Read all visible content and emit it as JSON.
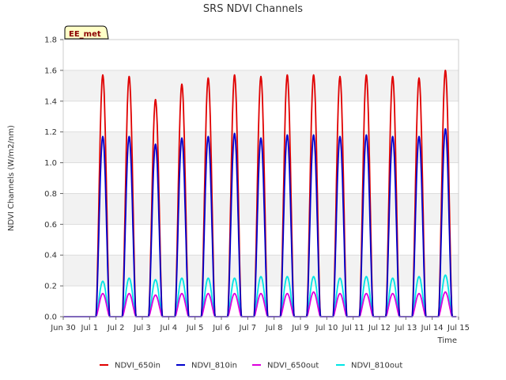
{
  "chart_data": {
    "type": "line",
    "title": "SRS NDVI Channels",
    "xlabel": "Time",
    "ylabel": "NDVI Channels (W/m2/nm)",
    "ylim": [
      0,
      1.8
    ],
    "xlim": [
      "2023-06-30",
      "2023-07-15"
    ],
    "x_tick_labels": [
      "Jun 30",
      "Jul 1",
      "Jul 2",
      "Jul 3",
      "Jul 4",
      "Jul 5",
      "Jul 6",
      "Jul 7",
      "Jul 8",
      "Jul 9",
      "Jul 10",
      "Jul 11",
      "Jul 12",
      "Jul 13",
      "Jul 14",
      "Jul 15"
    ],
    "y_tick_labels": [
      "0.0",
      "0.2",
      "0.4",
      "0.6",
      "0.8",
      "1.0",
      "1.2",
      "1.4",
      "1.6",
      "1.8"
    ],
    "y_ticks": [
      0,
      0.2,
      0.4,
      0.6,
      0.8,
      1.0,
      1.2,
      1.4,
      1.6,
      1.8
    ],
    "grid": "horizontal bands",
    "legend_position": "bottom",
    "annotation": "EE_met",
    "series": [
      {
        "name": "NDVI_650in",
        "color": "#e00000",
        "daily_peak": [
          "2023-07-01T12:00",
          "2023-07-02T12:00",
          "2023-07-03T12:00",
          "2023-07-04T12:00",
          "2023-07-05T12:00",
          "2023-07-06T12:00",
          "2023-07-07T12:00",
          "2023-07-08T12:00",
          "2023-07-09T12:00",
          "2023-07-10T12:00",
          "2023-07-11T12:00",
          "2023-07-12T12:00",
          "2023-07-13T12:00",
          "2023-07-14T12:00"
        ],
        "peak_values": [
          1.57,
          1.56,
          1.41,
          1.51,
          1.55,
          1.57,
          1.56,
          1.57,
          1.57,
          1.56,
          1.57,
          1.56,
          1.55,
          1.6
        ]
      },
      {
        "name": "NDVI_810in",
        "color": "#0000cc",
        "daily_peak": [
          "2023-07-01T12:00",
          "2023-07-02T12:00",
          "2023-07-03T12:00",
          "2023-07-04T12:00",
          "2023-07-05T12:00",
          "2023-07-06T12:00",
          "2023-07-07T12:00",
          "2023-07-08T12:00",
          "2023-07-09T12:00",
          "2023-07-10T12:00",
          "2023-07-11T12:00",
          "2023-07-12T12:00",
          "2023-07-13T12:00",
          "2023-07-14T12:00"
        ],
        "peak_values": [
          1.17,
          1.17,
          1.12,
          1.16,
          1.17,
          1.19,
          1.16,
          1.18,
          1.18,
          1.17,
          1.18,
          1.17,
          1.17,
          1.22
        ]
      },
      {
        "name": "NDVI_650out",
        "color": "#dd00dd",
        "daily_peak": [
          "2023-07-01T12:00",
          "2023-07-02T12:00",
          "2023-07-03T12:00",
          "2023-07-04T12:00",
          "2023-07-05T12:00",
          "2023-07-06T12:00",
          "2023-07-07T12:00",
          "2023-07-08T12:00",
          "2023-07-09T12:00",
          "2023-07-10T12:00",
          "2023-07-11T12:00",
          "2023-07-12T12:00",
          "2023-07-13T12:00",
          "2023-07-14T12:00"
        ],
        "peak_values": [
          0.15,
          0.15,
          0.14,
          0.15,
          0.15,
          0.15,
          0.15,
          0.15,
          0.16,
          0.15,
          0.15,
          0.15,
          0.15,
          0.16
        ]
      },
      {
        "name": "NDVI_810out",
        "color": "#00e5e5",
        "daily_peak": [
          "2023-07-01T12:00",
          "2023-07-02T12:00",
          "2023-07-03T12:00",
          "2023-07-04T12:00",
          "2023-07-05T12:00",
          "2023-07-06T12:00",
          "2023-07-07T12:00",
          "2023-07-08T12:00",
          "2023-07-09T12:00",
          "2023-07-10T12:00",
          "2023-07-11T12:00",
          "2023-07-12T12:00",
          "2023-07-13T12:00",
          "2023-07-14T12:00"
        ],
        "peak_values": [
          0.23,
          0.25,
          0.24,
          0.25,
          0.25,
          0.25,
          0.26,
          0.26,
          0.26,
          0.25,
          0.26,
          0.25,
          0.26,
          0.27
        ]
      }
    ]
  }
}
